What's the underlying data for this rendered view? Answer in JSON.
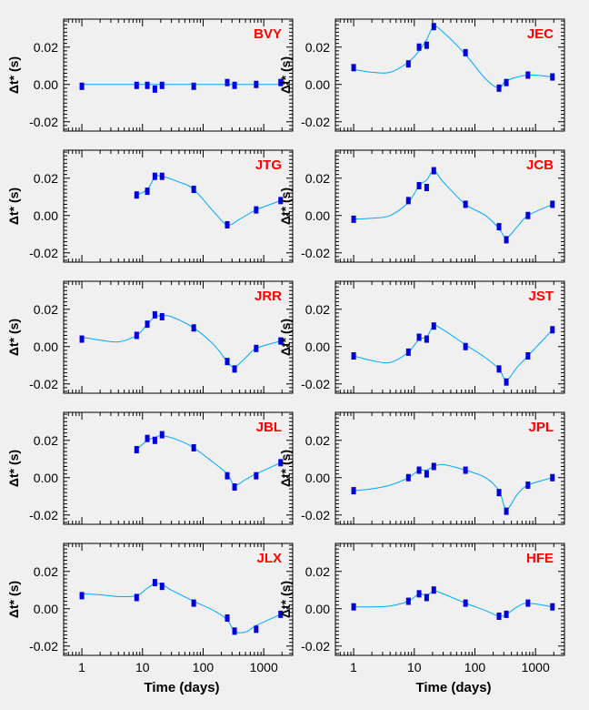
{
  "figure": {
    "ylabel": "Δt* (s)",
    "xlabel": "Time (days)",
    "x_scale": "log",
    "xlim": [
      0.5,
      3000
    ],
    "ylim": [
      -0.025,
      0.035
    ],
    "yticks": [
      -0.02,
      0.0,
      0.02
    ],
    "ytick_labels": [
      "-0.02",
      "0.00",
      "0.02"
    ],
    "xticks": [
      1,
      10,
      100,
      1000
    ],
    "xtick_labels": [
      "1",
      "10",
      "100",
      "1000"
    ]
  },
  "colors": {
    "background": "#f0f0f0",
    "frame": "#000000",
    "curve": "#00a8ff",
    "points": "#0000dd",
    "station_label": "#ff0000"
  },
  "chart_data": [
    {
      "type": "scatter",
      "title": "BVY",
      "x": [
        1,
        8,
        12,
        16,
        21,
        70,
        250,
        330,
        750,
        1900
      ],
      "values": [
        -0.001,
        -0.0005,
        -0.0005,
        -0.0025,
        -0.0005,
        -0.001,
        0.001,
        -0.0005,
        0.0,
        0.001
      ],
      "fit": {
        "x": [
          1,
          10,
          100,
          1000,
          1900
        ],
        "y": [
          0,
          0,
          0,
          0,
          0
        ]
      }
    },
    {
      "type": "scatter",
      "title": "JEC",
      "x": [
        1,
        8,
        12,
        16,
        21,
        70,
        250,
        330,
        750,
        1900
      ],
      "values": [
        0.009,
        0.011,
        0.02,
        0.021,
        0.031,
        0.017,
        -0.002,
        0.001,
        0.005,
        0.004
      ],
      "fit": {
        "x": [
          1,
          2,
          4,
          8,
          12,
          16,
          21,
          30,
          70,
          150,
          250,
          330,
          750,
          1900
        ],
        "y": [
          0.008,
          0.0065,
          0.0065,
          0.012,
          0.018,
          0.024,
          0.031,
          0.028,
          0.016,
          0.003,
          -0.002,
          0.002,
          0.005,
          0.004
        ]
      }
    },
    {
      "type": "scatter",
      "title": "JTG",
      "x": [
        8,
        12,
        16,
        21,
        70,
        250,
        750,
        1900
      ],
      "values": [
        0.011,
        0.013,
        0.021,
        0.021,
        0.014,
        -0.005,
        0.003,
        0.008
      ],
      "fit": {
        "x": [
          8,
          12,
          16,
          21,
          40,
          70,
          150,
          250,
          400,
          750,
          1900
        ],
        "y": [
          0.011,
          0.014,
          0.0205,
          0.021,
          0.018,
          0.014,
          0.002,
          -0.005,
          -0.002,
          0.003,
          0.008
        ]
      }
    },
    {
      "type": "scatter",
      "title": "JCB",
      "x": [
        1,
        8,
        12,
        16,
        21,
        70,
        250,
        330,
        750,
        1900
      ],
      "values": [
        -0.002,
        0.008,
        0.016,
        0.015,
        0.024,
        0.006,
        -0.006,
        -0.013,
        0.0,
        0.006
      ],
      "fit": {
        "x": [
          1,
          2,
          4,
          8,
          12,
          16,
          21,
          30,
          70,
          150,
          250,
          330,
          500,
          750,
          1900
        ],
        "y": [
          -0.002,
          -0.0015,
          0.0,
          0.007,
          0.016,
          0.019,
          0.024,
          0.018,
          0.006,
          0.0,
          -0.007,
          -0.012,
          -0.006,
          0.0,
          0.006
        ]
      }
    },
    {
      "type": "scatter",
      "title": "JRR",
      "x": [
        1,
        8,
        12,
        16,
        21,
        70,
        250,
        330,
        750,
        1900
      ],
      "values": [
        0.004,
        0.006,
        0.012,
        0.017,
        0.016,
        0.01,
        -0.008,
        -0.012,
        -0.001,
        0.003
      ],
      "fit": {
        "x": [
          1,
          2,
          4,
          8,
          12,
          16,
          21,
          30,
          70,
          150,
          250,
          330,
          500,
          750,
          1900
        ],
        "y": [
          0.005,
          0.0035,
          0.0025,
          0.006,
          0.012,
          0.016,
          0.0165,
          0.016,
          0.01,
          0.001,
          -0.008,
          -0.011,
          -0.006,
          -0.001,
          0.003
        ]
      }
    },
    {
      "type": "scatter",
      "title": "JST",
      "x": [
        1,
        8,
        12,
        16,
        21,
        70,
        250,
        330,
        750,
        1900
      ],
      "values": [
        -0.005,
        -0.003,
        0.005,
        0.004,
        0.011,
        0.0,
        -0.012,
        -0.019,
        -0.005,
        0.009
      ],
      "fit": {
        "x": [
          1,
          2,
          4,
          8,
          12,
          16,
          21,
          30,
          70,
          150,
          250,
          330,
          500,
          750,
          1900
        ],
        "y": [
          -0.005,
          -0.0075,
          -0.0085,
          -0.003,
          0.004,
          0.005,
          0.011,
          0.009,
          0.001,
          -0.006,
          -0.012,
          -0.018,
          -0.011,
          -0.005,
          0.009
        ]
      }
    },
    {
      "type": "scatter",
      "title": "JBL",
      "x": [
        8,
        12,
        16,
        21,
        70,
        250,
        330,
        750,
        1900
      ],
      "values": [
        0.015,
        0.021,
        0.02,
        0.023,
        0.016,
        0.001,
        -0.005,
        0.001,
        0.008
      ],
      "fit": {
        "x": [
          8,
          12,
          16,
          21,
          40,
          70,
          150,
          250,
          330,
          500,
          750,
          1900
        ],
        "y": [
          0.015,
          0.02,
          0.0215,
          0.0225,
          0.02,
          0.016,
          0.008,
          0.002,
          -0.004,
          -0.001,
          0.002,
          0.008
        ]
      }
    },
    {
      "type": "scatter",
      "title": "JPL",
      "x": [
        1,
        8,
        12,
        16,
        21,
        70,
        250,
        330,
        750,
        1900
      ],
      "values": [
        -0.007,
        0.0,
        0.004,
        0.002,
        0.006,
        0.004,
        -0.008,
        -0.018,
        -0.004,
        0.0
      ],
      "fit": {
        "x": [
          1,
          2,
          4,
          8,
          12,
          16,
          21,
          30,
          70,
          150,
          250,
          330,
          500,
          750,
          1900
        ],
        "y": [
          -0.007,
          -0.006,
          -0.004,
          0.0,
          0.004,
          0.004,
          0.006,
          0.007,
          0.004,
          0.0,
          -0.007,
          -0.017,
          -0.009,
          -0.004,
          0.0
        ]
      }
    },
    {
      "type": "scatter",
      "title": "JLX",
      "x": [
        1,
        8,
        16,
        21,
        70,
        250,
        330,
        750,
        1900
      ],
      "values": [
        0.007,
        0.006,
        0.014,
        0.012,
        0.003,
        -0.005,
        -0.012,
        -0.011,
        -0.003
      ],
      "fit": {
        "x": [
          1,
          2,
          4,
          8,
          12,
          16,
          21,
          30,
          70,
          150,
          250,
          330,
          500,
          750,
          1900
        ],
        "y": [
          0.008,
          0.0075,
          0.0065,
          0.007,
          0.011,
          0.0135,
          0.013,
          0.01,
          0.004,
          -0.001,
          -0.006,
          -0.012,
          -0.0125,
          -0.009,
          -0.003
        ]
      }
    },
    {
      "type": "scatter",
      "title": "HFE",
      "x": [
        1,
        8,
        12,
        16,
        21,
        70,
        250,
        330,
        750,
        1900
      ],
      "values": [
        0.001,
        0.004,
        0.008,
        0.006,
        0.01,
        0.003,
        -0.004,
        -0.003,
        0.003,
        0.001
      ],
      "fit": {
        "x": [
          1,
          2,
          4,
          8,
          12,
          16,
          21,
          30,
          70,
          150,
          250,
          330,
          500,
          750,
          1900
        ],
        "y": [
          0.001,
          0.001,
          0.0015,
          0.004,
          0.008,
          0.007,
          0.0095,
          0.008,
          0.003,
          -0.001,
          -0.004,
          -0.003,
          0.001,
          0.003,
          0.001
        ]
      }
    }
  ]
}
